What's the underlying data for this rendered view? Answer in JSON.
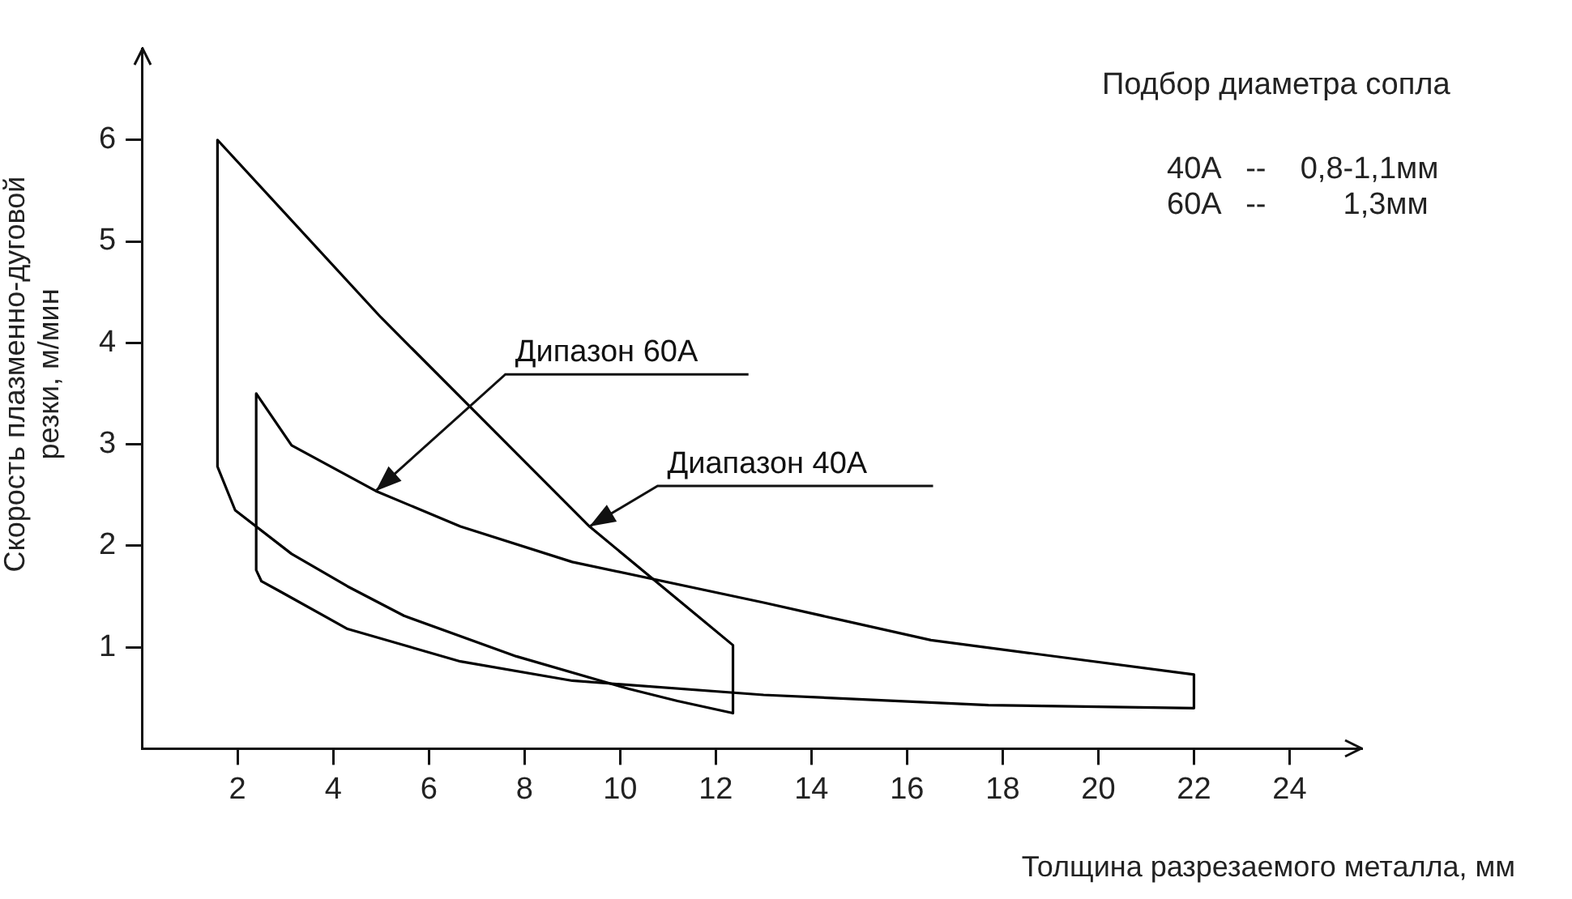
{
  "chart_data": {
    "type": "line",
    "xlabel": "Толщина разрезаемого металла, мм",
    "ylabel": "Скорость плазменно-дуговой резки, м/мин",
    "xlim": [
      0,
      25.5
    ],
    "xticks": [
      2,
      4,
      6,
      8,
      10,
      12,
      14,
      16,
      18,
      20,
      22,
      24
    ],
    "ylim": [
      0,
      6.9
    ],
    "yticks": [
      1,
      2,
      3,
      4,
      5,
      6
    ],
    "grid": false,
    "legend": false,
    "marker": "none",
    "line_style": "solid",
    "series": [
      {
        "color": "#000000",
        "x": [
          1.58,
          5.0,
          9.36,
          12.36,
          12.36
        ],
        "values": [
          6.0,
          4.25,
          2.19,
          1.02,
          0.35
        ]
      },
      {
        "color": "#000000",
        "x": [
          1.58,
          1.58,
          1.95,
          3.13,
          4.3,
          5.48,
          7.83,
          10.18,
          11.2,
          12.36
        ],
        "values": [
          6.0,
          2.78,
          2.35,
          1.92,
          1.6,
          1.31,
          0.91,
          0.59,
          0.47,
          0.35
        ]
      },
      {
        "color": "#000000",
        "x": [
          2.39,
          3.13,
          4.89,
          6.66,
          9.0,
          13.0,
          16.5,
          22.0,
          22.0
        ],
        "values": [
          3.5,
          2.99,
          2.54,
          2.19,
          1.84,
          1.44,
          1.07,
          0.73,
          0.4
        ]
      },
      {
        "color": "#000000",
        "x": [
          2.39,
          2.39,
          2.5,
          2.89,
          4.3,
          6.66,
          9.0,
          13.0,
          17.7,
          22.0
        ],
        "values": [
          3.5,
          1.76,
          1.65,
          1.55,
          1.18,
          0.86,
          0.67,
          0.53,
          0.43,
          0.4
        ]
      }
    ],
    "annotations": [
      {
        "text": "Дипазон 60A",
        "x": 4.89,
        "y": 2.54
      },
      {
        "text": "Диапазон 40A",
        "x": 9.36,
        "y": 2.19
      },
      "Подбор диаметра сопла",
      "40A   --    0,8-1,1мм",
      "60A   --         1,3мм"
    ]
  }
}
